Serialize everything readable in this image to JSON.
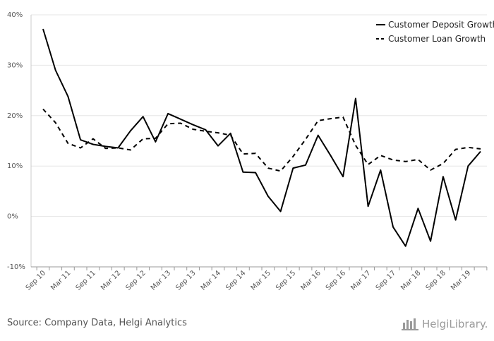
{
  "chart_data": {
    "type": "line",
    "title": "",
    "xlabel": "",
    "ylabel": "",
    "ylim": [
      -10,
      40
    ],
    "y_ticks": [
      -10,
      0,
      10,
      20,
      30,
      40
    ],
    "y_tick_labels": [
      "-10%",
      "0%",
      "10%",
      "20%",
      "30%",
      "40%"
    ],
    "grid": true,
    "legend_position": "top-right",
    "x": [
      "Sep 10",
      "Dec 10",
      "Mar 11",
      "Jun 11",
      "Sep 11",
      "Dec 11",
      "Mar 12",
      "Jun 12",
      "Sep 12",
      "Dec 12",
      "Mar 13",
      "Jun 13",
      "Sep 13",
      "Dec 13",
      "Mar 14",
      "Jun 14",
      "Sep 14",
      "Dec 14",
      "Mar 15",
      "Jun 15",
      "Sep 15",
      "Dec 15",
      "Mar 16",
      "Jun 16",
      "Sep 16",
      "Dec 16",
      "Mar 17",
      "Jun 17",
      "Sep 17",
      "Dec 17",
      "Mar 18",
      "Jun 18",
      "Sep 18",
      "Dec 18",
      "Mar 19",
      "Jun 19"
    ],
    "x_tick_labels": [
      "Sep 10",
      "Mar 11",
      "Sep 11",
      "Mar 12",
      "Sep 12",
      "Mar 13",
      "Sep 13",
      "Mar 14",
      "Sep 14",
      "Mar 15",
      "Sep 15",
      "Mar 16",
      "Sep 16",
      "Mar 17",
      "Sep 17",
      "Mar 18",
      "Sep 18",
      "Mar 19"
    ],
    "series": [
      {
        "name": "Customer Deposit Growth",
        "style": "solid",
        "values": [
          37.2,
          29.0,
          23.8,
          15.2,
          14.3,
          13.9,
          13.6,
          17.0,
          19.8,
          14.8,
          20.4,
          19.3,
          18.2,
          17.2,
          14.0,
          16.5,
          8.8,
          8.7,
          4.0,
          1.0,
          9.6,
          10.2,
          16.1,
          12.1,
          7.9,
          23.4,
          2.0,
          9.2,
          -2.1,
          -5.9,
          1.6,
          -4.9,
          7.9,
          -0.7,
          10.0,
          12.9
        ]
      },
      {
        "name": "Customer Loan Growth",
        "style": "dashed",
        "values": [
          21.3,
          18.6,
          14.5,
          13.6,
          15.4,
          13.5,
          13.6,
          13.2,
          15.4,
          15.5,
          18.4,
          18.5,
          17.3,
          16.9,
          16.6,
          16.1,
          12.4,
          12.5,
          9.6,
          9.0,
          11.9,
          15.3,
          19.0,
          19.4,
          19.7,
          14.1,
          10.3,
          12.1,
          11.2,
          10.9,
          11.3,
          9.2,
          10.5,
          13.3,
          13.7,
          13.4
        ]
      }
    ]
  },
  "footer": {
    "source": "Source: Company Data, Helgi Analytics",
    "logo_text": "HelgiLibrary."
  }
}
